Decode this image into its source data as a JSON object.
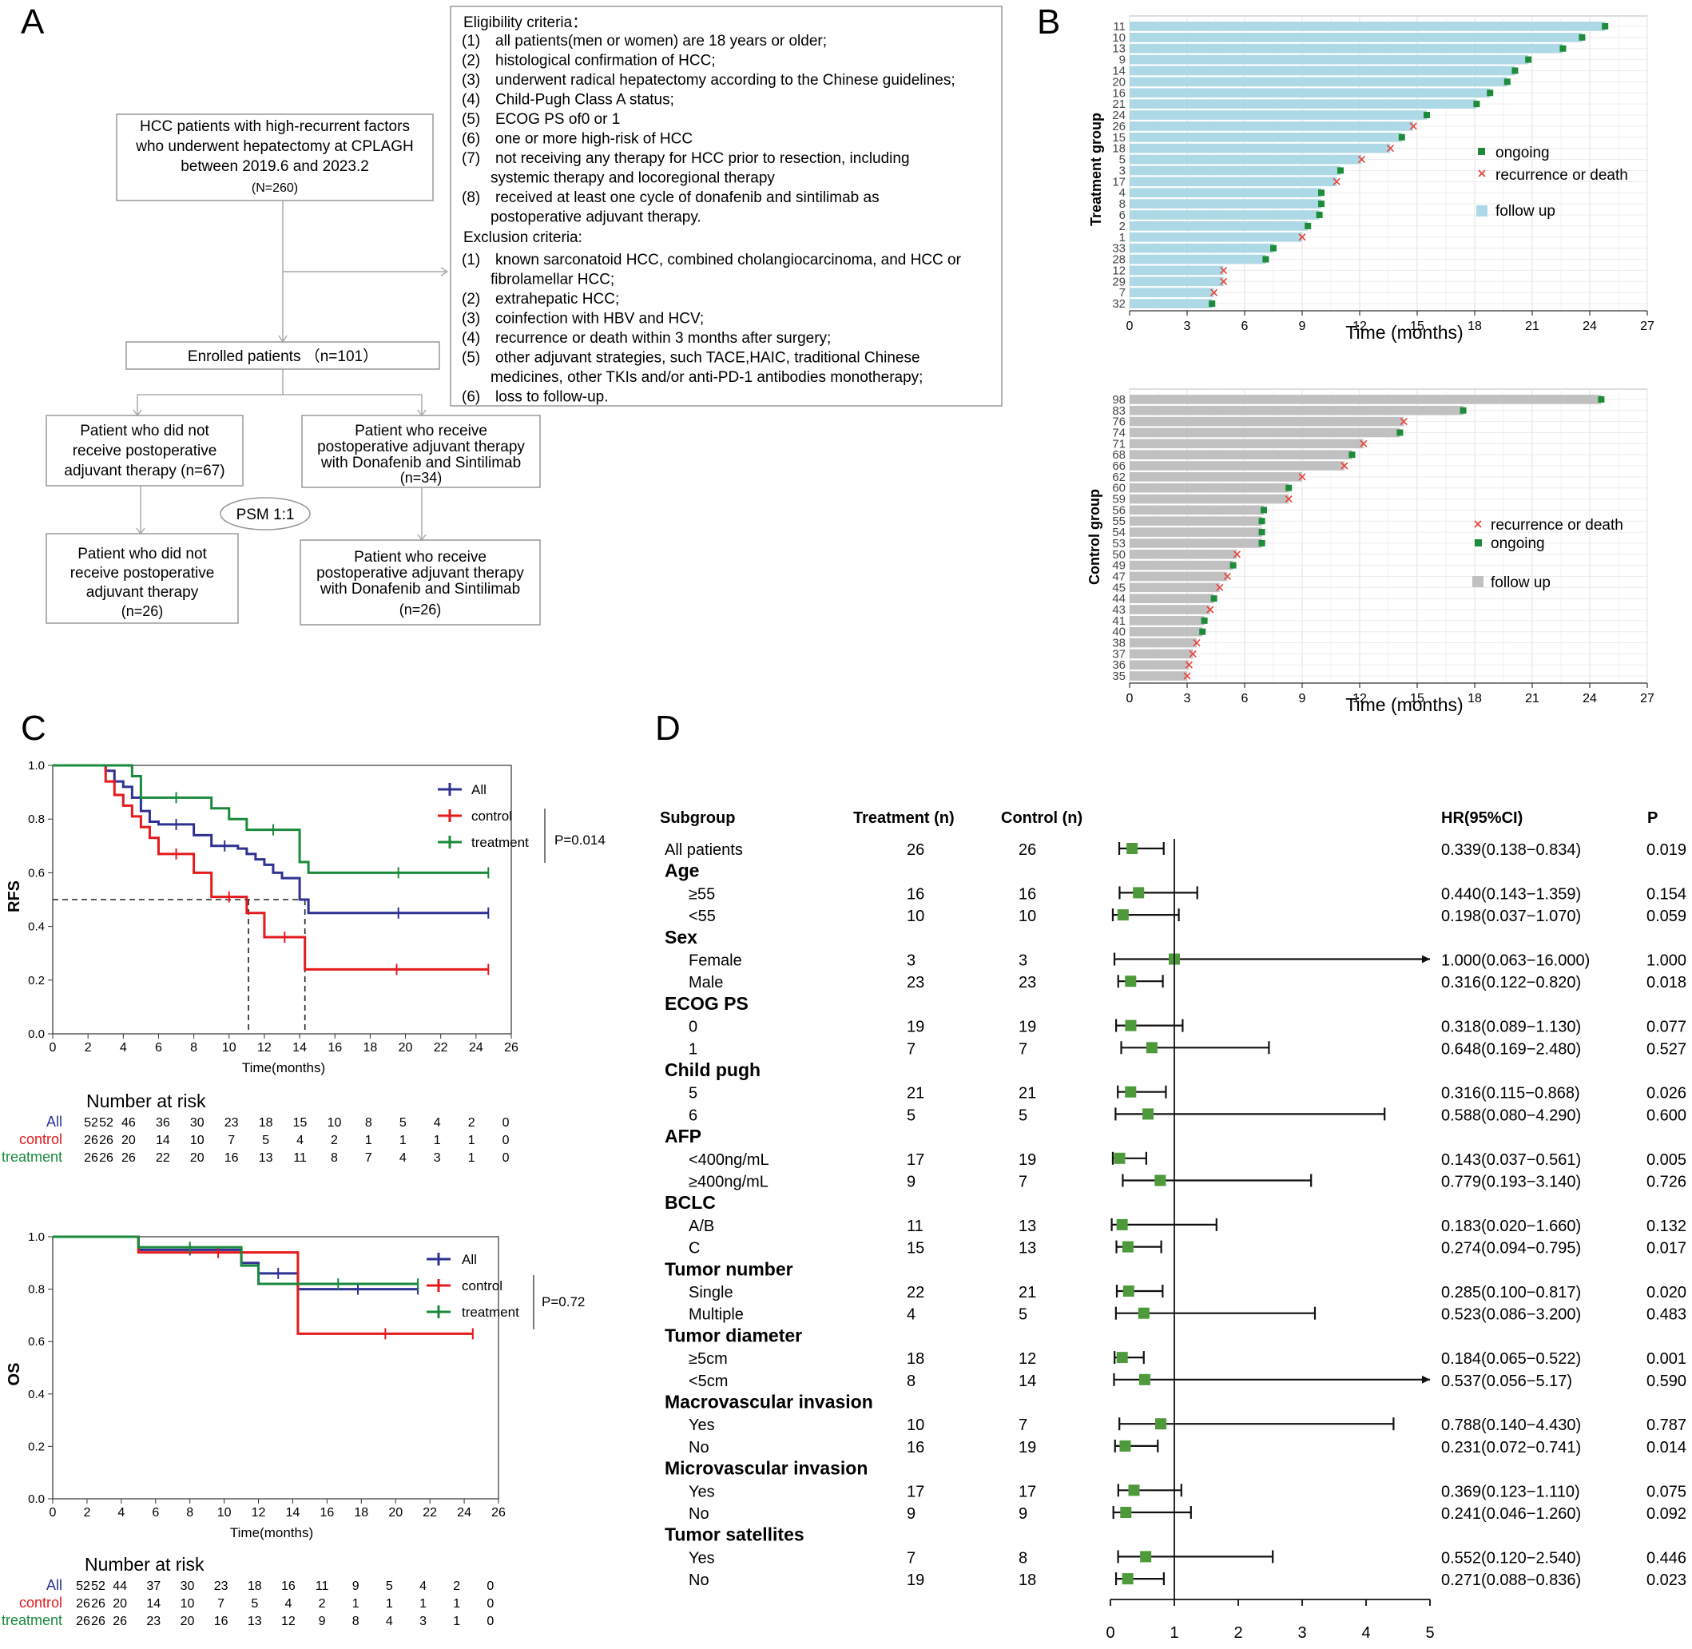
{
  "panels": {
    "A": {
      "letter": "A",
      "box_patients": [
        "HCC patients with high-recurrent factors",
        "who underwent hepatectomy at CPLAGH",
        "between 2019.6 and 2023.2",
        "(N=260)"
      ],
      "eligibility_title": "Eligibility criteria：",
      "eligibility": [
        [
          "(1)",
          "all patients(men or women) are 18 years or older;"
        ],
        [
          "(2)",
          "histological confirmation of HCC;"
        ],
        [
          "(3)",
          "underwent radical hepatectomy according to the Chinese guidelines;"
        ],
        [
          "(4)",
          "Child-Pugh Class A status;"
        ],
        [
          "(5)",
          "ECOG PS of0  or  1"
        ],
        [
          "(6)",
          "one or more high-risk of HCC"
        ],
        [
          "(7)",
          "not receiving any therapy for HCC prior to resection, including"
        ],
        [
          "",
          "systemic   therapy and locoregional therapy"
        ],
        [
          "(8)",
          "received at least one cycle of donafenib and sintilimab as"
        ],
        [
          "",
          "postoperative      adjuvant therapy."
        ]
      ],
      "exclusion_title": "Exclusion criteria:",
      "exclusion": [
        [
          "(1)",
          "known sarconatoid HCC, combined cholangiocarcinoma, and HCC or"
        ],
        [
          "",
          "fibrolamellar HCC;"
        ],
        [
          "(2)",
          "extrahepatic HCC;"
        ],
        [
          "(3)",
          "coinfection with HBV and HCV;"
        ],
        [
          "(4)",
          "recurrence or death within 3 months after surgery;"
        ],
        [
          "(5)",
          "other adjuvant strategies, such TACE,HAIC, traditional Chinese"
        ],
        [
          "",
          "medicines, other TKIs and/or anti-PD-1 antibodies monotherapy;"
        ],
        [
          "(6)",
          "loss to follow-up."
        ]
      ],
      "box_enrolled": "Enrolled patients （n=101）",
      "box_no_adj": [
        "Patient who did not",
        "receive postoperative",
        "adjuvant therapy (n=67)"
      ],
      "box_adj": [
        "Patient who receive",
        "postoperative adjuvant therapy",
        "with Donafenib and Sintilimab",
        "(n=34)"
      ],
      "psm": "PSM 1:1",
      "box_no_adj_psm": [
        "Patient who did not",
        "receive postoperative",
        "adjuvant therapy",
        "(n=26)"
      ],
      "box_adj_psm": [
        "Patient who receive",
        "postoperative adjuvant therapy",
        "with Donafenib and Sintilimab",
        "(n=26)"
      ]
    },
    "B": {
      "letter": "B",
      "xlabel": "Time (months)",
      "xticks": [
        0,
        3,
        6,
        9,
        12,
        15,
        18,
        21,
        24,
        27
      ],
      "treatment": {
        "ylabel": "Treatment group",
        "legend": [
          {
            "symbol": "square",
            "label": "ongoing"
          },
          {
            "symbol": "cross",
            "label": "recurrence or death"
          },
          {
            "symbol": "bar",
            "label": "follow up"
          }
        ],
        "bar_color": "#add8e6"
      },
      "control": {
        "ylabel": "Control group",
        "legend": [
          {
            "symbol": "cross",
            "label": "recurrence or death"
          },
          {
            "symbol": "square",
            "label": "ongoing"
          },
          {
            "symbol": "bar",
            "label": "follow up"
          }
        ],
        "bar_color": "#c0c0c0"
      }
    },
    "C": {
      "letter": "C",
      "xlabel": "Time(months)",
      "legend": [
        "All",
        "control",
        "treatment"
      ],
      "rfs": {
        "ylabel": "RFS",
        "pvalue": "P=0.014"
      },
      "os": {
        "ylabel": "OS",
        "pvalue": "P=0.72"
      },
      "risk_title": "Number at risk",
      "risk_labels": [
        "All",
        "control",
        "treatment"
      ],
      "rfs_risk": {
        "All": [
          "52",
          "52",
          "46",
          "36",
          "30",
          "23",
          "18",
          "15",
          "10",
          "8",
          "5",
          "4",
          "2",
          "0"
        ],
        "control": [
          "26",
          "26",
          "20",
          "14",
          "10",
          "7",
          "5",
          "4",
          "2",
          "1",
          "1",
          "1",
          "1",
          "0"
        ],
        "treatment": [
          "26",
          "26",
          "26",
          "22",
          "20",
          "16",
          "13",
          "11",
          "8",
          "7",
          "4",
          "3",
          "1",
          "0"
        ]
      },
      "os_risk": {
        "All": [
          "52",
          "52",
          "44",
          "37",
          "30",
          "23",
          "18",
          "16",
          "11",
          "9",
          "5",
          "4",
          "2",
          "0"
        ],
        "control": [
          "26",
          "26",
          "20",
          "14",
          "10",
          "7",
          "5",
          "4",
          "2",
          "1",
          "1",
          "1",
          "1",
          "0"
        ],
        "treatment": [
          "26",
          "26",
          "26",
          "23",
          "20",
          "16",
          "13",
          "12",
          "9",
          "8",
          "4",
          "3",
          "1",
          "0"
        ]
      }
    },
    "D": {
      "letter": "D",
      "headers": {
        "subgroup": "Subgroup",
        "treatment": "Treatment (n)",
        "control": "Control (n)",
        "hr": "HR(95%CI)",
        "p": "P"
      },
      "xticks": [
        "0",
        "1",
        "2",
        "3",
        "4",
        "5"
      ]
    }
  },
  "chart_data": [
    {
      "id": "B-treatment",
      "type": "bar",
      "orientation": "horizontal",
      "x_unit": "months",
      "xlim": [
        0,
        27
      ],
      "categories": [
        "11",
        "10",
        "13",
        "9",
        "14",
        "20",
        "16",
        "21",
        "24",
        "26",
        "15",
        "18",
        "5",
        "3",
        "17",
        "4",
        "8",
        "6",
        "2",
        "1",
        "33",
        "28",
        "12",
        "29",
        "7",
        "32"
      ],
      "values": [
        24.8,
        23.6,
        22.6,
        20.8,
        20.1,
        19.7,
        18.8,
        18.1,
        15.5,
        14.8,
        14.2,
        13.6,
        12.1,
        11.0,
        10.8,
        10.0,
        10.0,
        9.9,
        9.3,
        9.0,
        7.5,
        7.1,
        4.9,
        4.9,
        4.4,
        4.3
      ],
      "events": [
        "ongoing",
        "ongoing",
        "ongoing",
        "ongoing",
        "ongoing",
        "ongoing",
        "ongoing",
        "ongoing",
        "ongoing",
        "recurrence or death",
        "ongoing",
        "recurrence or death",
        "recurrence or death",
        "ongoing",
        "recurrence or death",
        "ongoing",
        "ongoing",
        "ongoing",
        "ongoing",
        "recurrence or death",
        "ongoing",
        "ongoing",
        "recurrence or death",
        "recurrence or death",
        "recurrence or death",
        "ongoing"
      ]
    },
    {
      "id": "B-control",
      "type": "bar",
      "orientation": "horizontal",
      "x_unit": "months",
      "xlim": [
        0,
        27
      ],
      "categories": [
        "98",
        "83",
        "76",
        "74",
        "71",
        "68",
        "66",
        "62",
        "60",
        "59",
        "56",
        "55",
        "54",
        "53",
        "50",
        "49",
        "47",
        "45",
        "44",
        "43",
        "41",
        "40",
        "38",
        "37",
        "36",
        "35"
      ],
      "values": [
        24.6,
        17.4,
        14.3,
        14.1,
        12.2,
        11.6,
        11.2,
        9.0,
        8.3,
        8.3,
        7.0,
        6.9,
        6.9,
        6.9,
        5.6,
        5.4,
        5.1,
        4.7,
        4.4,
        4.2,
        3.9,
        3.8,
        3.5,
        3.3,
        3.1,
        3.0
      ],
      "events": [
        "ongoing",
        "ongoing",
        "recurrence or death",
        "ongoing",
        "recurrence or death",
        "ongoing",
        "recurrence or death",
        "recurrence or death",
        "ongoing",
        "recurrence or death",
        "ongoing",
        "ongoing",
        "ongoing",
        "ongoing",
        "recurrence or death",
        "ongoing",
        "recurrence or death",
        "recurrence or death",
        "ongoing",
        "recurrence or death",
        "ongoing",
        "ongoing",
        "recurrence or death",
        "recurrence or death",
        "recurrence or death",
        "recurrence or death"
      ]
    },
    {
      "id": "C-RFS",
      "type": "line",
      "step": true,
      "ylabel": "RFS",
      "xlabel": "Time(months)",
      "xlim": [
        0,
        26
      ],
      "ylim": [
        0,
        1
      ],
      "xticks": [
        0,
        2,
        4,
        6,
        8,
        10,
        12,
        14,
        16,
        18,
        20,
        22,
        24,
        26
      ],
      "yticks": [
        "0.0",
        "0.2",
        "0.4",
        "0.6",
        "0.8",
        "1.0"
      ],
      "series": [
        {
          "name": "All",
          "color": "#2e3192",
          "x": [
            0,
            3,
            3.5,
            4,
            4.5,
            5,
            5.5,
            6,
            8,
            9,
            10.5,
            11,
            11.5,
            12,
            12.5,
            13,
            14,
            14.5,
            24.7
          ],
          "y": [
            1,
            0.98,
            0.94,
            0.92,
            0.88,
            0.83,
            0.79,
            0.78,
            0.74,
            0.7,
            0.69,
            0.67,
            0.65,
            0.63,
            0.6,
            0.58,
            0.5,
            0.45,
            0.45
          ]
        },
        {
          "name": "control",
          "color": "#e41a1c",
          "x": [
            0,
            3,
            3.5,
            4,
            4.5,
            5,
            5.5,
            6,
            8,
            9,
            11,
            12,
            14.3,
            24.7
          ],
          "y": [
            1,
            0.94,
            0.89,
            0.85,
            0.81,
            0.77,
            0.73,
            0.67,
            0.6,
            0.51,
            0.45,
            0.36,
            0.24,
            0.24
          ]
        },
        {
          "name": "treatment",
          "color": "#1a8a3c",
          "x": [
            0,
            4.5,
            5,
            9,
            10,
            11,
            14,
            14.5,
            24.7
          ],
          "y": [
            1,
            0.96,
            0.88,
            0.84,
            0.8,
            0.76,
            0.64,
            0.6,
            0.6
          ]
        }
      ],
      "median_lines": [
        {
          "x": 11.1,
          "y": 0.5
        },
        {
          "x": 14.3,
          "y": 0.5
        }
      ]
    },
    {
      "id": "C-OS",
      "type": "line",
      "step": true,
      "ylabel": "OS",
      "xlabel": "Time(months)",
      "xlim": [
        0,
        26
      ],
      "ylim": [
        0,
        1
      ],
      "xticks": [
        0,
        2,
        4,
        6,
        8,
        10,
        12,
        14,
        16,
        18,
        20,
        22,
        24,
        26
      ],
      "yticks": [
        "0.0",
        "0.2",
        "0.4",
        "0.6",
        "0.8",
        "1.0"
      ],
      "series": [
        {
          "name": "All",
          "color": "#2e3192",
          "x": [
            0,
            5,
            11,
            12,
            14.3,
            21.3
          ],
          "y": [
            1,
            0.95,
            0.9,
            0.86,
            0.8,
            0.8
          ]
        },
        {
          "name": "control",
          "color": "#e41a1c",
          "x": [
            0,
            5,
            14.3,
            24.5
          ],
          "y": [
            1,
            0.94,
            0.63,
            0.63
          ]
        },
        {
          "name": "treatment",
          "color": "#1a8a3c",
          "x": [
            0,
            5,
            11,
            12,
            21.3
          ],
          "y": [
            1,
            0.96,
            0.89,
            0.82,
            0.82
          ]
        }
      ]
    },
    {
      "id": "D-forest",
      "type": "scatter",
      "xlim": [
        0,
        5
      ],
      "reference_line": 1,
      "rows": [
        {
          "label": "All patients",
          "header": false,
          "indent": false,
          "t": "26",
          "c": "26",
          "hr": 0.339,
          "lo": 0.138,
          "hi": 0.834,
          "hrtext": "0.339(0.138−0.834)",
          "p": "0.019"
        },
        {
          "label": "Age",
          "header": true
        },
        {
          "label": "≥55",
          "indent": true,
          "t": "16",
          "c": "16",
          "hr": 0.44,
          "lo": 0.143,
          "hi": 1.359,
          "hrtext": "0.440(0.143−1.359)",
          "p": "0.154"
        },
        {
          "label": "<55",
          "indent": true,
          "t": "10",
          "c": "10",
          "hr": 0.198,
          "lo": 0.037,
          "hi": 1.07,
          "hrtext": "0.198(0.037−1.070)",
          "p": "0.059"
        },
        {
          "label": "Sex",
          "header": true
        },
        {
          "label": "Female",
          "indent": true,
          "t": "3",
          "c": "3",
          "hr": 1.0,
          "lo": 0.063,
          "hi": 16.0,
          "hrtext": "1.000(0.063−16.000)",
          "p": "1.000"
        },
        {
          "label": "Male",
          "indent": true,
          "t": "23",
          "c": "23",
          "hr": 0.316,
          "lo": 0.122,
          "hi": 0.82,
          "hrtext": "0.316(0.122−0.820)",
          "p": "0.018"
        },
        {
          "label": "ECOG PS",
          "header": true
        },
        {
          "label": "0",
          "indent": true,
          "t": "19",
          "c": "19",
          "hr": 0.318,
          "lo": 0.089,
          "hi": 1.13,
          "hrtext": "0.318(0.089−1.130)",
          "p": "0.077"
        },
        {
          "label": "1",
          "indent": true,
          "t": "7",
          "c": "7",
          "hr": 0.648,
          "lo": 0.169,
          "hi": 2.48,
          "hrtext": "0.648(0.169−2.480)",
          "p": "0.527"
        },
        {
          "label": "Child pugh",
          "header": true
        },
        {
          "label": "5",
          "indent": true,
          "t": "21",
          "c": "21",
          "hr": 0.316,
          "lo": 0.115,
          "hi": 0.868,
          "hrtext": "0.316(0.115−0.868)",
          "p": "0.026"
        },
        {
          "label": "6",
          "indent": true,
          "t": "5",
          "c": "5",
          "hr": 0.588,
          "lo": 0.08,
          "hi": 4.29,
          "hrtext": "0.588(0.080−4.290)",
          "p": "0.600"
        },
        {
          "label": "AFP",
          "header": true
        },
        {
          "label": "<400ng/mL",
          "indent": true,
          "t": "17",
          "c": "19",
          "hr": 0.143,
          "lo": 0.037,
          "hi": 0.561,
          "hrtext": "0.143(0.037−0.561)",
          "p": "0.005"
        },
        {
          "label": "≥400ng/mL",
          "indent": true,
          "t": "9",
          "c": "7",
          "hr": 0.779,
          "lo": 0.193,
          "hi": 3.14,
          "hrtext": "0.779(0.193−3.140)",
          "p": "0.726"
        },
        {
          "label": "BCLC",
          "header": true
        },
        {
          "label": "A/B",
          "indent": true,
          "t": "11",
          "c": "13",
          "hr": 0.183,
          "lo": 0.02,
          "hi": 1.66,
          "hrtext": "0.183(0.020−1.660)",
          "p": "0.132"
        },
        {
          "label": "C",
          "indent": true,
          "t": "15",
          "c": "13",
          "hr": 0.274,
          "lo": 0.094,
          "hi": 0.795,
          "hrtext": "0.274(0.094−0.795)",
          "p": "0.017"
        },
        {
          "label": "Tumor number",
          "header": true
        },
        {
          "label": "Single",
          "indent": true,
          "t": "22",
          "c": "21",
          "hr": 0.285,
          "lo": 0.1,
          "hi": 0.817,
          "hrtext": "0.285(0.100−0.817)",
          "p": "0.020"
        },
        {
          "label": "Multiple",
          "indent": true,
          "t": "4",
          "c": "5",
          "hr": 0.523,
          "lo": 0.086,
          "hi": 3.2,
          "hrtext": "0.523(0.086−3.200)",
          "p": "0.483"
        },
        {
          "label": "Tumor diameter",
          "header": true
        },
        {
          "label": "≥5cm",
          "indent": true,
          "t": "18",
          "c": "12",
          "hr": 0.184,
          "lo": 0.065,
          "hi": 0.522,
          "hrtext": "0.184(0.065−0.522)",
          "p": "0.001"
        },
        {
          "label": "<5cm",
          "indent": true,
          "t": "8",
          "c": "14",
          "hr": 0.537,
          "lo": 0.056,
          "hi": 5.17,
          "hrtext": "0.537(0.056−5.17)",
          "p": "0.590"
        },
        {
          "label": "Macrovascular invasion",
          "header": true
        },
        {
          "label": "Yes",
          "indent": true,
          "t": "10",
          "c": "7",
          "hr": 0.788,
          "lo": 0.14,
          "hi": 4.43,
          "hrtext": "0.788(0.140−4.430)",
          "p": "0.787"
        },
        {
          "label": "No",
          "indent": true,
          "t": "16",
          "c": "19",
          "hr": 0.231,
          "lo": 0.072,
          "hi": 0.741,
          "hrtext": "0.231(0.072−0.741)",
          "p": "0.014"
        },
        {
          "label": "Microvascular invasion",
          "header": true
        },
        {
          "label": "Yes",
          "indent": true,
          "t": "17",
          "c": "17",
          "hr": 0.369,
          "lo": 0.123,
          "hi": 1.11,
          "hrtext": "0.369(0.123−1.110)",
          "p": "0.075"
        },
        {
          "label": "No",
          "indent": true,
          "t": "9",
          "c": "9",
          "hr": 0.241,
          "lo": 0.046,
          "hi": 1.26,
          "hrtext": "0.241(0.046−1.260)",
          "p": "0.092"
        },
        {
          "label": "Tumor satellites",
          "header": true
        },
        {
          "label": "Yes",
          "indent": true,
          "t": "7",
          "c": "8",
          "hr": 0.552,
          "lo": 0.12,
          "hi": 2.54,
          "hrtext": "0.552(0.120−2.540)",
          "p": "0.446"
        },
        {
          "label": "No",
          "indent": true,
          "t": "19",
          "c": "18",
          "hr": 0.271,
          "lo": 0.088,
          "hi": 0.836,
          "hrtext": "0.271(0.088−0.836)",
          "p": "0.023"
        }
      ]
    }
  ]
}
